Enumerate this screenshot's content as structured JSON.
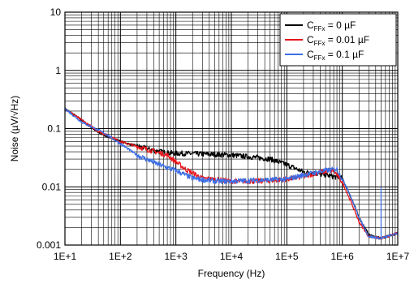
{
  "chart_data": {
    "type": "line",
    "xlabel": "Frequency (Hz)",
    "ylabel": "Noise (µV/√Hz)",
    "x_scale": "log",
    "y_scale": "log",
    "xlim": [
      10,
      10000000
    ],
    "ylim": [
      0.001,
      10
    ],
    "x_ticks": [
      "1E+1",
      "1E+2",
      "1E+3",
      "1E+4",
      "1E+5",
      "1E+6",
      "1E+7"
    ],
    "y_ticks": [
      "0.001",
      "0.01",
      "0.1",
      "1",
      "10"
    ],
    "grid": true,
    "legend_position": "top-right",
    "series": [
      {
        "name": "C_FFx = 0 µF",
        "legend": {
          "base": "C",
          "sub": "FFx",
          "rest": " = 0 µF"
        },
        "color": "#000000",
        "points": [
          [
            10,
            0.22
          ],
          [
            20,
            0.14
          ],
          [
            40,
            0.085
          ],
          [
            100,
            0.06
          ],
          [
            300,
            0.045
          ],
          [
            700,
            0.038
          ],
          [
            2000,
            0.037
          ],
          [
            5000,
            0.036
          ],
          [
            10000,
            0.035
          ],
          [
            20000,
            0.033
          ],
          [
            50000,
            0.03
          ],
          [
            100000,
            0.024
          ],
          [
            200000,
            0.018
          ],
          [
            500000,
            0.016
          ],
          [
            1000000,
            0.014
          ],
          [
            1500000,
            0.006
          ],
          [
            2000000,
            0.003
          ],
          [
            3000000,
            0.0015
          ],
          [
            5000000,
            0.0013
          ],
          [
            10000000,
            0.0016
          ]
        ]
      },
      {
        "name": "C_FFx = 0.01 µF",
        "legend": {
          "base": "C",
          "sub": "FFx",
          "rest": " = 0.01 µF"
        },
        "color": "#e8161b",
        "points": [
          [
            10,
            0.22
          ],
          [
            20,
            0.14
          ],
          [
            40,
            0.09
          ],
          [
            100,
            0.06
          ],
          [
            300,
            0.044
          ],
          [
            700,
            0.035
          ],
          [
            1500,
            0.02
          ],
          [
            3000,
            0.014
          ],
          [
            10000,
            0.0125
          ],
          [
            30000,
            0.0125
          ],
          [
            60000,
            0.013
          ],
          [
            100000,
            0.0135
          ],
          [
            200000,
            0.015
          ],
          [
            400000,
            0.018
          ],
          [
            700000,
            0.019
          ],
          [
            1000000,
            0.012
          ],
          [
            1500000,
            0.005
          ],
          [
            2000000,
            0.0025
          ],
          [
            3000000,
            0.0014
          ],
          [
            5000000,
            0.0013
          ],
          [
            10000000,
            0.0016
          ]
        ]
      },
      {
        "name": "C_FFx = 0.1 µF",
        "legend": {
          "base": "C",
          "sub": "FFx",
          "rest": " = 0.1 µF"
        },
        "color": "#3d6fe6",
        "points": [
          [
            10,
            0.22
          ],
          [
            20,
            0.13
          ],
          [
            50,
            0.085
          ],
          [
            100,
            0.055
          ],
          [
            200,
            0.035
          ],
          [
            500,
            0.024
          ],
          [
            1000,
            0.019
          ],
          [
            2000,
            0.014
          ],
          [
            5000,
            0.0125
          ],
          [
            10000,
            0.0125
          ],
          [
            30000,
            0.013
          ],
          [
            100000,
            0.0135
          ],
          [
            200000,
            0.016
          ],
          [
            500000,
            0.019
          ],
          [
            800000,
            0.02
          ],
          [
            1200000,
            0.01
          ],
          [
            2000000,
            0.003
          ],
          [
            3000000,
            0.0014
          ],
          [
            5000000,
            0.0013
          ],
          [
            10000000,
            0.0016
          ]
        ]
      }
    ]
  }
}
